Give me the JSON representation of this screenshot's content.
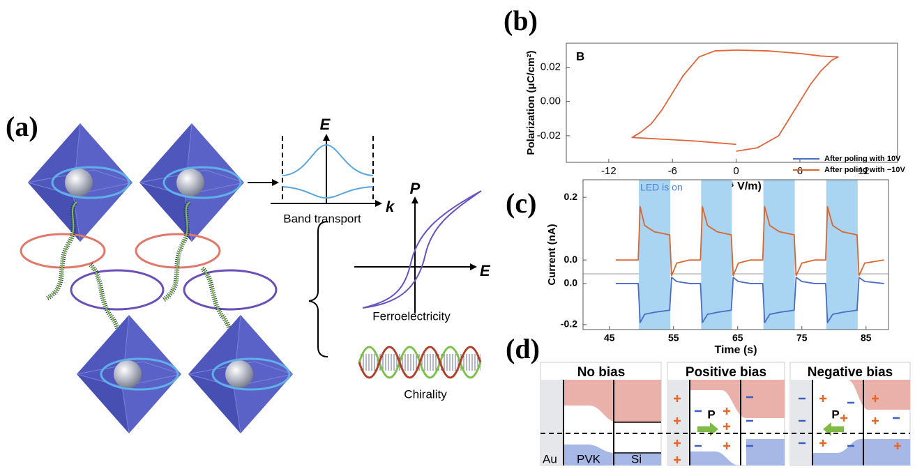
{
  "panel_labels": [
    "(a)",
    "(b)",
    "(c)",
    "(d)"
  ],
  "diagram_a": {
    "band_axes": {
      "y": "E",
      "x": "k"
    },
    "band_caption": "Band transport",
    "ferro_axes": {
      "y": "P",
      "x": "E"
    },
    "ferro_caption": "Ferroelectricity",
    "chirality_caption": "Chirality"
  },
  "chart_data": [
    {
      "type": "line",
      "annotation": "B",
      "x_label": "E (10⁶ V/m)",
      "y_label": "Polarization (μC/cm²)",
      "xlim": [
        -16,
        15.2
      ],
      "ylim": [
        -0.0355,
        0.034
      ],
      "xticks": [
        -12,
        -6,
        0,
        6,
        12
      ],
      "yticks": [
        0.02,
        {
          "value": 0,
          "label": "0.00"
        },
        -0.02
      ],
      "x": [
        0,
        2,
        4,
        5,
        6,
        7,
        8,
        9,
        9.6,
        8,
        6,
        3,
        0,
        -2,
        -3.5,
        -5,
        -6,
        -7,
        -8,
        -9,
        -9.8,
        -7,
        -4,
        -2,
        0
      ],
      "series": [
        {
          "color": "#e0653a",
          "values": [
            -0.029,
            -0.027,
            -0.02,
            -0.01,
            0.0,
            0.01,
            0.018,
            0.024,
            0.026,
            0.0265,
            0.028,
            0.0295,
            0.03,
            0.0295,
            0.026,
            0.015,
            0.005,
            -0.005,
            -0.013,
            -0.018,
            -0.021,
            -0.022,
            -0.023,
            -0.024,
            -0.025
          ]
        }
      ]
    },
    {
      "type": "line",
      "x_label": "Time (s)",
      "y_label": "Current (nA)",
      "xlim": [
        40.9,
        88.5
      ],
      "ylim": [
        -0.224,
        0.505
      ],
      "y2lim": [
        -0.222,
        0.256
      ],
      "xticks": [
        45,
        55,
        65,
        75,
        85
      ],
      "yticks": [
        {
          "value": 0,
          "label": "0.0"
        },
        -0.2
      ],
      "y2ticks": [
        0.2,
        {
          "value": 0,
          "label": "0.0"
        }
      ],
      "legend": "top-right",
      "shaded_spans": {
        "label": "LED is on",
        "color": "#a9d5f3",
        "ranges": [
          [
            49.6,
            54.5
          ],
          [
            59.3,
            64.1
          ],
          [
            69,
            73.9
          ],
          [
            78.8,
            83.7
          ]
        ]
      },
      "x": [
        46,
        49.5,
        49.8,
        50.5,
        52,
        54.4,
        54.7,
        55.5,
        57.5,
        59.2,
        59.5,
        60.3,
        61.8,
        64.0,
        64.3,
        65.1,
        67,
        68.9,
        69.2,
        70,
        71.5,
        73.8,
        74.1,
        75,
        77,
        78.7,
        79,
        79.8,
        81.3,
        83.6,
        83.9,
        84.8,
        87.8
      ],
      "series": [
        {
          "name": "After poling with 10V",
          "color": "#4a6cc2",
          "values": [
            0,
            0,
            -0.19,
            -0.15,
            -0.14,
            -0.13,
            0.03,
            0.01,
            0,
            0,
            -0.19,
            -0.15,
            -0.14,
            -0.13,
            0.03,
            0.01,
            0,
            0,
            -0.19,
            -0.15,
            -0.14,
            -0.13,
            0.03,
            0.01,
            0,
            0,
            -0.19,
            -0.15,
            -0.14,
            -0.13,
            0.03,
            0.01,
            0
          ]
        },
        {
          "name": "After poling with −10V",
          "color": "#d9662f",
          "axis": "y2",
          "values": [
            0,
            0,
            0.17,
            0.11,
            0.09,
            0.08,
            -0.05,
            -0.01,
            0,
            0,
            0.17,
            0.11,
            0.09,
            0.08,
            -0.05,
            -0.01,
            0,
            0,
            0.17,
            0.11,
            0.09,
            0.08,
            -0.05,
            -0.01,
            0,
            0,
            0.17,
            0.11,
            0.09,
            0.08,
            -0.05,
            -0.01,
            0
          ]
        }
      ]
    }
  ],
  "diagram_d": {
    "panels": [
      {
        "title": "No bias"
      },
      {
        "title": "Positive bias",
        "arrow_label": "P"
      },
      {
        "title": "Negative bias",
        "arrow_label": "P"
      }
    ],
    "layer_labels": [
      "Au",
      "PVK",
      "Si"
    ]
  }
}
